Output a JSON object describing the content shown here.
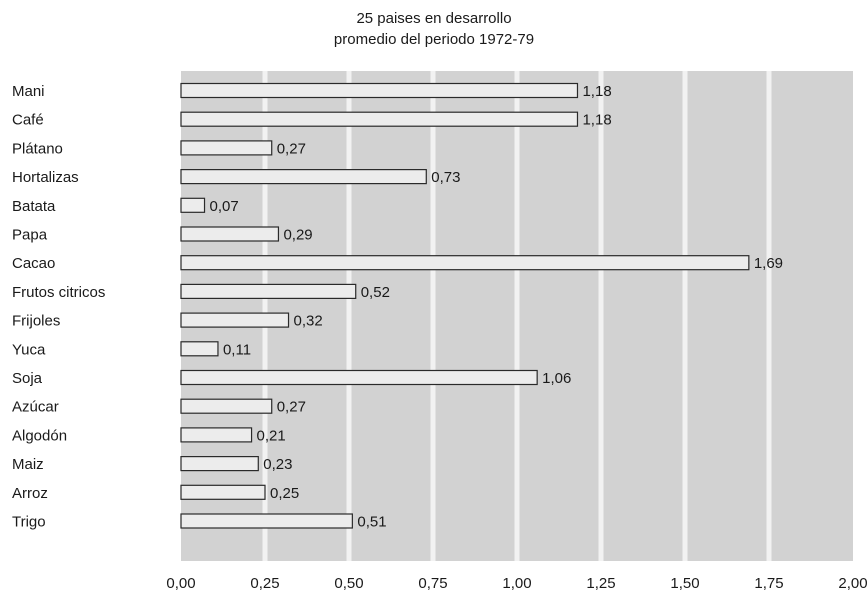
{
  "chart_data": {
    "type": "bar",
    "orientation": "horizontal",
    "title": "25 paises en desarrollo",
    "subtitle": "promedio del periodo 1972-79",
    "categories": [
      "Mani",
      "Café",
      "Plátano",
      "Hortalizas",
      "Batata",
      "Papa",
      "Cacao",
      "Frutos citricos",
      "Frijoles",
      "Yuca",
      "Soja",
      "Azúcar",
      "Algodón",
      "Maiz",
      "Arroz",
      "Trigo"
    ],
    "values": [
      1.18,
      1.18,
      0.27,
      0.73,
      0.07,
      0.29,
      1.69,
      0.52,
      0.32,
      0.11,
      1.06,
      0.27,
      0.21,
      0.23,
      0.25,
      0.51
    ],
    "value_labels": [
      "1,18",
      "1,18",
      "0,27",
      "0,73",
      "0,07",
      "0,29",
      "1,69",
      "0,52",
      "0,32",
      "0,11",
      "1,06",
      "0,27",
      "0,21",
      "0,23",
      "0,25",
      "0,51"
    ],
    "xticks": [
      0,
      0.25,
      0.5,
      0.75,
      1.0,
      1.25,
      1.5,
      1.75,
      2.0
    ],
    "xtick_labels": [
      "0,00",
      "0,25",
      "0,50",
      "0,75",
      "1,00",
      "1,25",
      "1,50",
      "1,75",
      "2,00"
    ],
    "xlim": [
      0,
      2.0
    ],
    "grid": true,
    "colors": {
      "background": "#d2d2d2",
      "gridline": "#f2f2f2",
      "bar_fill": "#ececec",
      "bar_stroke": "#2a2a2a"
    }
  }
}
